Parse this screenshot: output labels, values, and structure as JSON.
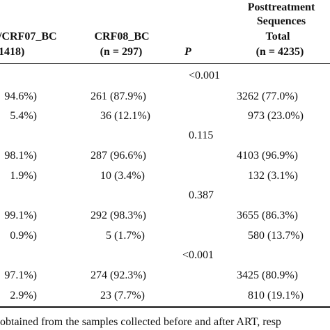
{
  "header": {
    "col1_line1": "/CRF07_BC",
    "col1_line2": "1418)",
    "col2_line1": "CRF08_BC",
    "col2_line2": "(n = 297)",
    "col3": "P",
    "col4_line1": "Posttreatment",
    "col4_line2": "Sequences",
    "col4_line3": "Total",
    "col4_line4": "(n = 4235)"
  },
  "groups": [
    {
      "p": "<0.001",
      "rows": [
        {
          "c1": "94.6%)",
          "c2": "261 (87.9%)",
          "c4": "3262 (77.0%)"
        },
        {
          "c1": "5.4%)",
          "c2": "36 (12.1%)",
          "c4": "973 (23.0%)"
        }
      ]
    },
    {
      "p": "0.115",
      "rows": [
        {
          "c1": "98.1%)",
          "c2": "287 (96.6%)",
          "c4": "4103 (96.9%)"
        },
        {
          "c1": "1.9%)",
          "c2": "10 (3.4%)",
          "c4": "132 (3.1%)"
        }
      ]
    },
    {
      "p": "0.387",
      "rows": [
        {
          "c1": "99.1%)",
          "c2": "292 (98.3%)",
          "c4": "3655 (86.3%)"
        },
        {
          "c1": "0.9%)",
          "c2": "5 (1.7%)",
          "c4": "580 (13.7%)"
        }
      ]
    },
    {
      "p": "<0.001",
      "rows": [
        {
          "c1": "97.1%)",
          "c2": "274 (92.3%)",
          "c4": "3425 (80.9%)"
        },
        {
          "c1": "2.9%)",
          "c2": "23 (7.7%)",
          "c4": "810 (19.1%)"
        }
      ]
    }
  ],
  "footnote": "obtained from the samples collected before and after ART, resp"
}
